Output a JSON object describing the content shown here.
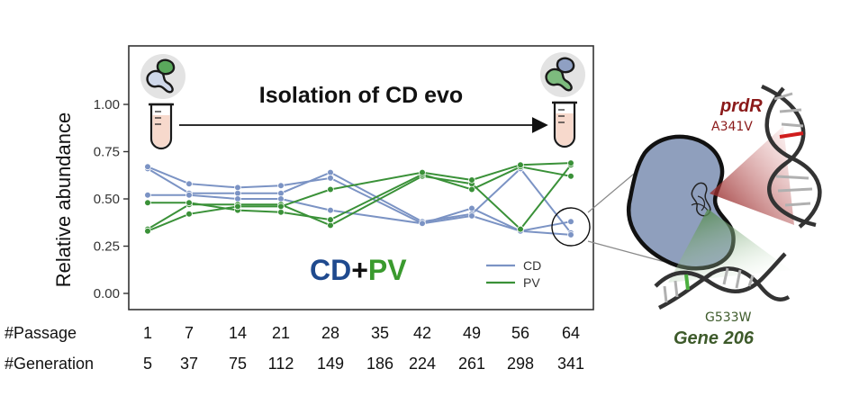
{
  "chart_data": {
    "type": "line",
    "ylabel": "Relative abundance",
    "yticks": [
      "0.00",
      "0.25",
      "0.50",
      "0.75",
      "1.00"
    ],
    "ylim": [
      0,
      1.3
    ],
    "x": [
      1,
      7,
      14,
      21,
      28,
      35,
      42,
      49,
      56,
      64
    ],
    "row_labels": {
      "passage": "#Passage",
      "generation": "#Generation"
    },
    "passages": [
      "1",
      "7",
      "14",
      "21",
      "28",
      "35",
      "42",
      "49",
      "56",
      "64"
    ],
    "generations": [
      "5",
      "37",
      "75",
      "112",
      "149",
      "186",
      "224",
      "261",
      "298",
      "341"
    ],
    "series": [
      {
        "name": "CD",
        "color": "#7b93c4",
        "values": [
          0.66,
          0.53,
          0.53,
          0.53,
          0.64,
          null,
          0.38,
          0.42,
          0.66,
          0.32
        ]
      },
      {
        "name": "CD",
        "color": "#7b93c4",
        "values": [
          0.52,
          0.52,
          0.5,
          0.5,
          0.44,
          null,
          0.37,
          0.45,
          0.33,
          0.38
        ]
      },
      {
        "name": "CD",
        "color": "#7b93c4",
        "values": [
          0.67,
          0.58,
          0.56,
          0.57,
          0.61,
          null,
          0.37,
          0.41,
          0.33,
          0.31
        ]
      },
      {
        "name": "PV",
        "color": "#3a9138",
        "values": [
          0.34,
          0.47,
          0.47,
          0.47,
          0.36,
          null,
          0.62,
          0.58,
          0.34,
          0.68
        ]
      },
      {
        "name": "PV",
        "color": "#3a9138",
        "values": [
          0.48,
          0.48,
          0.44,
          0.43,
          0.39,
          null,
          0.63,
          0.55,
          0.67,
          0.62
        ]
      },
      {
        "name": "PV",
        "color": "#3a9138",
        "values": [
          0.33,
          0.42,
          0.46,
          0.46,
          0.55,
          null,
          0.64,
          0.6,
          0.68,
          0.69
        ]
      }
    ],
    "legend": {
      "placement": "bottom-right",
      "entries": [
        {
          "label": "CD",
          "color": "#7b93c4"
        },
        {
          "label": "PV",
          "color": "#3a9138"
        }
      ]
    }
  },
  "annotations": {
    "arrow_label": "Isolation of CD evo",
    "combo": {
      "part1": "CD",
      "plus": "+",
      "part2": "PV"
    },
    "gene1": {
      "name": "prdR",
      "mutation": "A341V"
    },
    "gene2": {
      "name": "Gene 206",
      "mutation": "G533W"
    }
  },
  "colors": {
    "cd": "#7b93c4",
    "pv": "#3a9138",
    "cd_text": "#1f4a8e",
    "pv_text": "#3a9a2e",
    "prdr": "#8b1a1a",
    "gene206": "#3d5a2a",
    "cell": "#8f9fbd"
  }
}
